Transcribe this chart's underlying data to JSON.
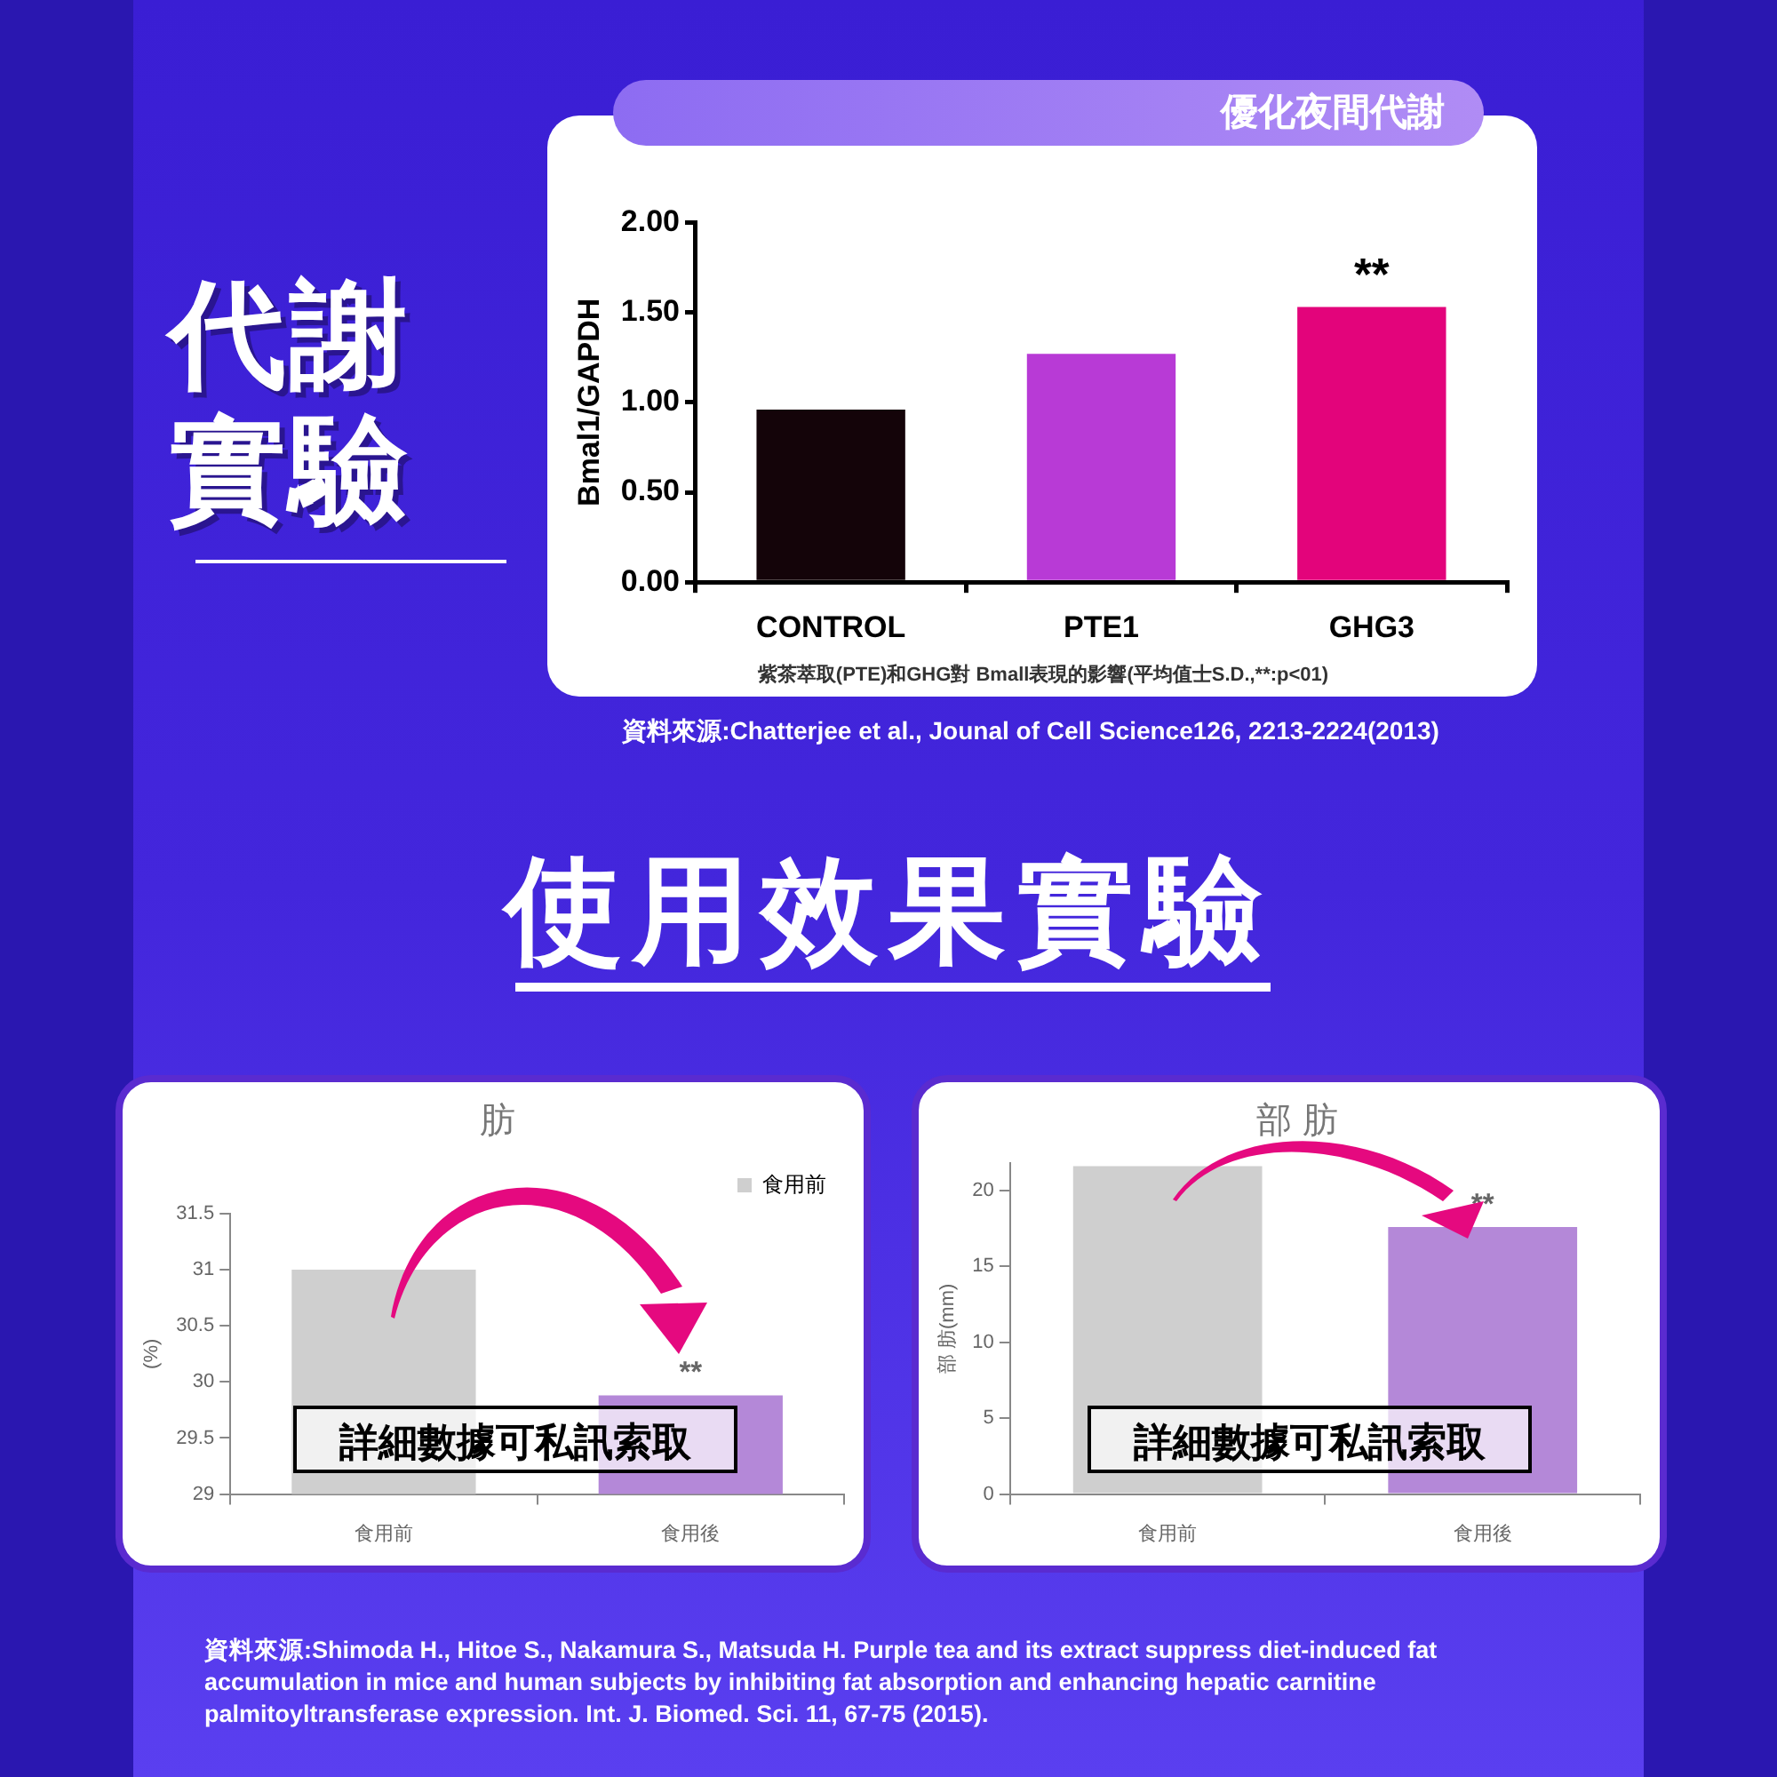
{
  "chart_data": [
    {
      "type": "bar",
      "title": "優化夜間代謝",
      "ylabel": "Bmal1/GAPDH",
      "categories": [
        "CONTROL",
        "PTE1",
        "GHG3"
      ],
      "series": [
        {
          "colors": [
            "#140409",
            "#b83ad6",
            "#e3047b"
          ],
          "values": [
            0.96,
            1.27,
            1.53
          ]
        }
      ],
      "ylim": [
        0,
        2
      ],
      "yticks": [
        {
          "value": 0,
          "label": "0.00"
        },
        {
          "value": 0.5,
          "label": "0.50"
        },
        {
          "value": 1,
          "label": "1.00"
        },
        {
          "value": 1.5,
          "label": "1.50"
        },
        {
          "value": 2,
          "label": "2.00"
        }
      ],
      "grid": false,
      "legend": false,
      "annotations": [
        "代謝實驗",
        {
          "text": "**",
          "x": "GHG3",
          "y": 1.53
        },
        "紫茶萃取(PTE)和GHG對 Bmall表現的影響(平均值士S.D.,**:p<01)",
        "資料來源:Chatterjee et al., Jounal of Cell Science126, 2213-2224(2013)"
      ]
    },
    {
      "type": "bar",
      "title": "肪",
      "ylabel": "(%)",
      "categories": [
        "食用前",
        "食用後"
      ],
      "series": [
        {
          "name": "食用前",
          "colors": [
            "#cfcfcf",
            "#b488d8"
          ],
          "values": [
            31,
            29.88
          ]
        }
      ],
      "ylim": [
        29,
        31.5
      ],
      "yticks": [
        29,
        29.5,
        30,
        30.5,
        31,
        31.5
      ],
      "grid": false,
      "legend": "top right",
      "annotations": [
        "使用效果實驗",
        {
          "text": "**",
          "x": "食用後",
          "y": 29.88
        },
        "詳細數據可私訊索取",
        "資料來源:Shimoda H., Hitoe S., Nakamura S., Matsuda H. Purple tea and its extract suppress diet-induced fat accumulation in mice and human subjects by inhibiting fat absorption and enhancing hepatic carnitine palmitoyltransferase expression. Int. J. Biomed. Sci. 11, 67-75 (2015)."
      ]
    },
    {
      "type": "bar",
      "title": "部 肪",
      "ylabel": "部 肪(mm)",
      "categories": [
        "食用前",
        "食用後"
      ],
      "series": [
        {
          "colors": [
            "#cfcfcf",
            "#b488d8"
          ],
          "values": [
            21.6,
            17.6
          ]
        }
      ],
      "ylim": [
        0,
        21.8
      ],
      "yticks": [
        0,
        5,
        10,
        15,
        20
      ],
      "grid": false,
      "legend": false,
      "annotations": [
        {
          "text": "**",
          "x": "食用後",
          "y": 17.6
        },
        "詳細數據可私訊索取"
      ]
    }
  ]
}
